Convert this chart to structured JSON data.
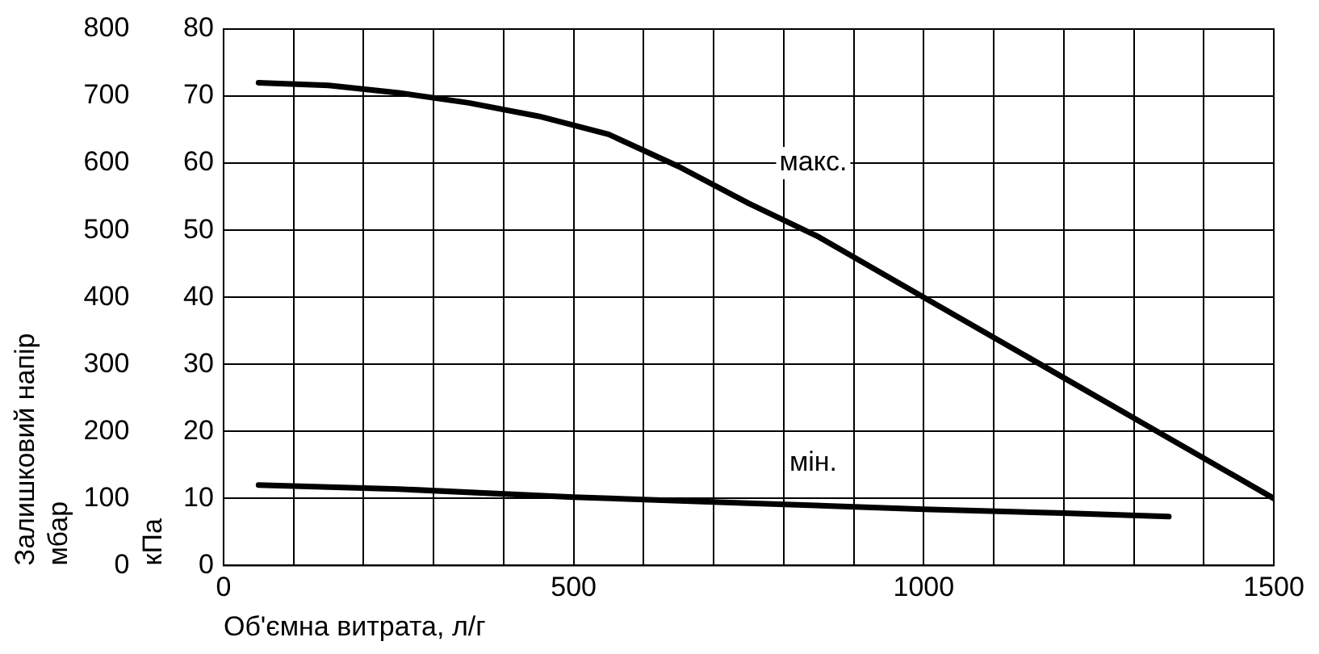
{
  "chart_data": {
    "type": "line",
    "xlabel": "Об'ємна витрата, л/г",
    "ylabel": "Залишковий напір\nмбар",
    "y2label": "кПа",
    "xlim": [
      0,
      1500
    ],
    "xticks": [
      0,
      {
        "value": 100,
        "label": null
      },
      {
        "value": 200,
        "label": null
      },
      {
        "value": 300,
        "label": null
      },
      {
        "value": 400,
        "label": null
      },
      500,
      {
        "value": 600,
        "label": null
      },
      {
        "value": 700,
        "label": null
      },
      {
        "value": 800,
        "label": null
      },
      {
        "value": 900,
        "label": null
      },
      1000,
      {
        "value": 1100,
        "label": null
      },
      {
        "value": 1200,
        "label": null
      },
      {
        "value": 1300,
        "label": null
      },
      {
        "value": 1400,
        "label": null
      },
      1500
    ],
    "ylim": [
      0,
      800
    ],
    "yticks": [
      0,
      100,
      200,
      300,
      400,
      500,
      600,
      700,
      800
    ],
    "y2lim": [
      0,
      80
    ],
    "y2ticks": [
      0,
      10,
      20,
      30,
      40,
      50,
      60,
      70,
      80
    ],
    "grid": true,
    "legend": false,
    "marker": "none",
    "line_style": "solid",
    "series": [
      {
        "name": "макс.",
        "color": "#000000",
        "axis": "y2",
        "x": [
          50,
          150,
          250,
          350,
          450,
          550,
          650,
          750,
          850,
          1000,
          1100,
          1200,
          1300,
          1400,
          1500
        ],
        "values": [
          72,
          71.6,
          70.5,
          69,
          67,
          64.3,
          59.5,
          54,
          49,
          40,
          34,
          28,
          22,
          16,
          10
        ]
      },
      {
        "name": "мін.",
        "color": "#000000",
        "axis": "y2",
        "x": [
          50,
          250,
          500,
          750,
          1000,
          1200,
          1350
        ],
        "values": [
          12,
          11.4,
          10.2,
          9.3,
          8.4,
          7.8,
          7.3
        ]
      }
    ]
  }
}
